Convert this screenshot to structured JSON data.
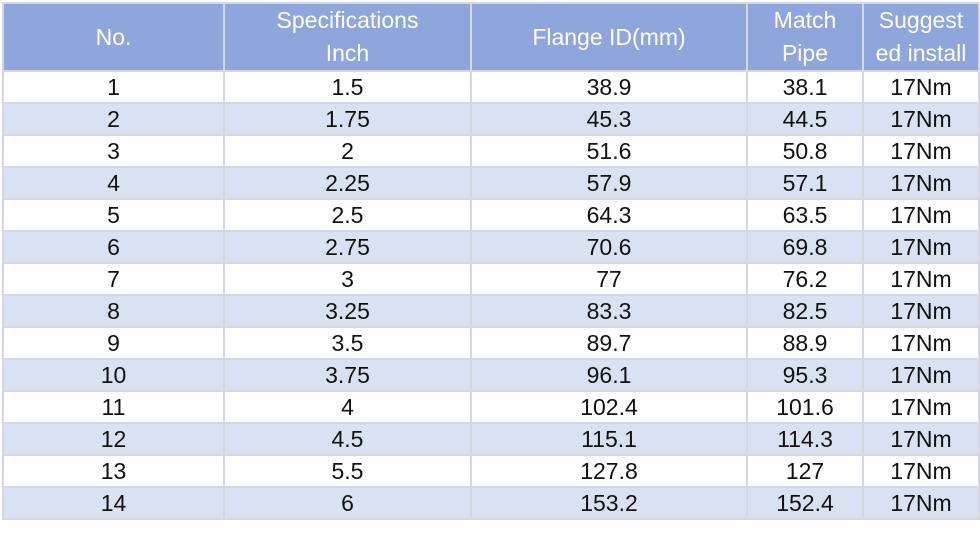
{
  "table": {
    "headers": [
      {
        "line1": "No.",
        "line2": ""
      },
      {
        "line1": "Specifications",
        "line2": "Inch"
      },
      {
        "line1": "Flange ID(mm)",
        "line2": ""
      },
      {
        "line1": "Match",
        "line2": "Pipe"
      },
      {
        "line1": "Suggest",
        "line2": "ed install"
      }
    ],
    "rows": [
      [
        "1",
        "1.5",
        "38.9",
        "38.1",
        "17Nm"
      ],
      [
        "2",
        "1.75",
        "45.3",
        "44.5",
        "17Nm"
      ],
      [
        "3",
        "2",
        "51.6",
        "50.8",
        "17Nm"
      ],
      [
        "4",
        "2.25",
        "57.9",
        "57.1",
        "17Nm"
      ],
      [
        "5",
        "2.5",
        "64.3",
        "63.5",
        "17Nm"
      ],
      [
        "6",
        "2.75",
        "70.6",
        "69.8",
        "17Nm"
      ],
      [
        "7",
        "3",
        "77",
        "76.2",
        "17Nm"
      ],
      [
        "8",
        "3.25",
        "83.3",
        "82.5",
        "17Nm"
      ],
      [
        "9",
        "3.5",
        "89.7",
        "88.9",
        "17Nm"
      ],
      [
        "10",
        "3.75",
        "96.1",
        "95.3",
        "17Nm"
      ],
      [
        "11",
        "4",
        "102.4",
        "101.6",
        "17Nm"
      ],
      [
        "12",
        "4.5",
        "115.1",
        "114.3",
        "17Nm"
      ],
      [
        "13",
        "5.5",
        "127.8",
        "127",
        "17Nm"
      ],
      [
        "14",
        "6",
        "153.2",
        "152.4",
        "17Nm"
      ]
    ]
  },
  "colors": {
    "header_bg": "#8fa6dd",
    "header_text": "#ffffff",
    "row_alt_bg": "#d9e2f3",
    "row_bg": "#ffffff",
    "border": "#d4d8e0"
  }
}
